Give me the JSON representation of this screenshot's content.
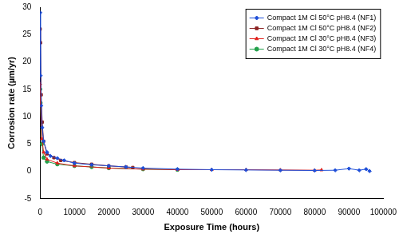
{
  "chart_data": {
    "type": "line",
    "x_label": "Exposure Time (hours)",
    "y_label": "Corrosion rate (µm/yr)",
    "xlim": [
      0,
      100000
    ],
    "xticks": [
      0,
      10000,
      20000,
      30000,
      40000,
      50000,
      60000,
      70000,
      80000,
      90000,
      100000
    ],
    "ylim": [
      -5,
      30
    ],
    "yticks": [
      -5,
      0,
      5,
      10,
      15,
      20,
      25,
      30
    ],
    "grid": false,
    "legend": "upper right",
    "series": [
      {
        "name": "Compact 1M Cl 50°C pH8.4 (NF1)",
        "color": "#1f4fd8",
        "marker": "diamond",
        "line_style": "solid",
        "x": [
          0,
          100,
          300,
          600,
          1000,
          2000,
          3000,
          5000,
          7000,
          10000,
          15000,
          20000,
          25000,
          30000,
          40000,
          50000,
          60000,
          70000,
          80000,
          86000,
          90000,
          93000,
          95000,
          96000
        ],
        "values": [
          29,
          17.5,
          12,
          8,
          5.5,
          3.5,
          2.8,
          2.4,
          2.0,
          1.5,
          1.2,
          1.0,
          0.8,
          0.6,
          0.4,
          0.3,
          0.25,
          0.2,
          0.15,
          0.2,
          0.5,
          0.2,
          0.4,
          0.05
        ]
      },
      {
        "name": "Compact 1M Cl 50°C pH8.4 (NF2)",
        "color": "#8b2323",
        "marker": "square",
        "line_style": "solid",
        "x": [
          0,
          100,
          300,
          600,
          1000,
          2000,
          4000,
          6000,
          10000,
          15000,
          20000,
          25000,
          27000
        ],
        "values": [
          26,
          23.5,
          14,
          9,
          5.5,
          3.2,
          2.5,
          2.0,
          1.6,
          1.3,
          1.0,
          0.8,
          0.7
        ]
      },
      {
        "name": "Compact 1M Cl 30°C pH8.4 (NF3)",
        "color": "#e0201b",
        "marker": "triangle",
        "line_style": "solid",
        "x": [
          0,
          100,
          500,
          1000,
          2000,
          5000,
          10000,
          20000,
          30000,
          40000,
          50000,
          60000,
          70000,
          80000,
          82000
        ],
        "values": [
          16,
          12,
          6,
          3.5,
          2.2,
          1.5,
          1.0,
          0.6,
          0.4,
          0.3,
          0.3,
          0.3,
          0.25,
          0.2,
          0.25
        ]
      },
      {
        "name": "Compact 1M Cl 30°C pH8.4 (NF4)",
        "color": "#22a04a",
        "marker": "circle",
        "line_style": "solid",
        "x": [
          0,
          100,
          500,
          1000,
          2000,
          5000,
          10000,
          15000,
          20000,
          30000,
          40000
        ],
        "values": [
          15,
          12.5,
          5,
          2.5,
          1.8,
          1.3,
          1.0,
          0.8,
          0.6,
          0.4,
          0.3
        ]
      }
    ]
  }
}
